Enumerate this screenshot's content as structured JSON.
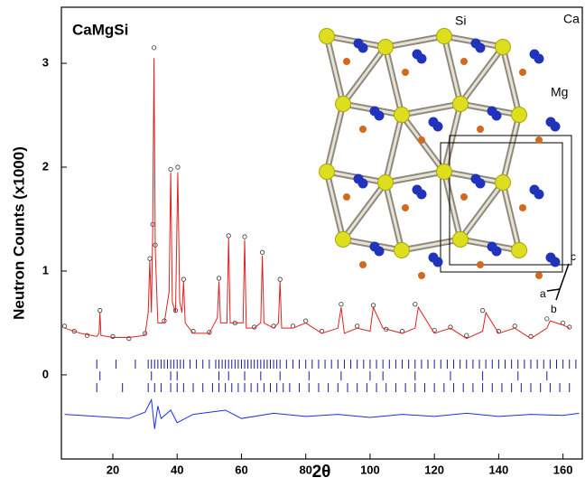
{
  "chart_data": {
    "type": "rietveld",
    "title": "CaMgSi",
    "ylabel": "Neutron Counts (x1000)",
    "xlabel": "2θ",
    "xlim": [
      4,
      166
    ],
    "ylim": [
      -0.81,
      3.54
    ],
    "xticks": [
      20,
      40,
      60,
      80,
      100,
      120,
      140,
      160
    ],
    "yticks": [
      0,
      1,
      2,
      3
    ],
    "observed": {
      "color": "#333333",
      "x": [
        5,
        8,
        12,
        16,
        20,
        25,
        30,
        31.5,
        32.4,
        32.8,
        33.2,
        36,
        38,
        39.5,
        40.2,
        42,
        45,
        50,
        53,
        56,
        58,
        61,
        64,
        66.5,
        70,
        72,
        76,
        80,
        85,
        91,
        96,
        101,
        105,
        110,
        114,
        120,
        125,
        130,
        135,
        140,
        145,
        150,
        155,
        160,
        162
      ],
      "y": [
        0.47,
        0.42,
        0.38,
        0.62,
        0.37,
        0.35,
        0.4,
        1.12,
        1.45,
        3.15,
        1.25,
        0.52,
        1.98,
        0.62,
        2.0,
        0.92,
        0.42,
        0.41,
        0.93,
        1.34,
        0.5,
        1.33,
        0.46,
        1.18,
        0.47,
        0.92,
        0.47,
        0.52,
        0.42,
        0.68,
        0.47,
        0.67,
        0.44,
        0.42,
        0.68,
        0.43,
        0.46,
        0.38,
        0.62,
        0.42,
        0.47,
        0.37,
        0.54,
        0.5,
        0.46
      ]
    },
    "calculated": {
      "color": "#e02020",
      "x": [
        5,
        10,
        15,
        15.7,
        16,
        16.3,
        20,
        25,
        30,
        31,
        31.5,
        32,
        32.4,
        32.8,
        33.2,
        34,
        36,
        37.5,
        38,
        38.5,
        39.5,
        40.2,
        40.8,
        41.5,
        42,
        42.5,
        45,
        50,
        52.5,
        53,
        53.5,
        55.5,
        56,
        56.5,
        60.5,
        61,
        61.5,
        64,
        66,
        66.5,
        67,
        70,
        71.5,
        72,
        72.5,
        76,
        80,
        85,
        90,
        91,
        92,
        96,
        100,
        101,
        104,
        110,
        114,
        115,
        120,
        125,
        130,
        135,
        136,
        140,
        145,
        150,
        155,
        156,
        160,
        162
      ],
      "y": [
        0.45,
        0.4,
        0.37,
        0.4,
        0.6,
        0.38,
        0.36,
        0.36,
        0.38,
        0.6,
        1.1,
        0.6,
        1.4,
        3.05,
        1.2,
        0.5,
        0.5,
        0.8,
        1.95,
        0.7,
        0.6,
        1.95,
        0.7,
        0.6,
        0.9,
        0.5,
        0.4,
        0.4,
        0.55,
        0.9,
        0.5,
        0.5,
        1.32,
        0.5,
        0.5,
        1.3,
        0.45,
        0.45,
        0.5,
        1.15,
        0.5,
        0.45,
        0.5,
        0.9,
        0.45,
        0.45,
        0.5,
        0.4,
        0.45,
        0.65,
        0.4,
        0.45,
        0.42,
        0.65,
        0.45,
        0.4,
        0.45,
        0.65,
        0.4,
        0.45,
        0.35,
        0.42,
        0.6,
        0.4,
        0.45,
        0.35,
        0.45,
        0.52,
        0.48,
        0.45
      ]
    },
    "difference": {
      "color": "#1f2fe0",
      "x": [
        5,
        15,
        25,
        30,
        31,
        32,
        33,
        34,
        35,
        38,
        40,
        45,
        55,
        60,
        70,
        80,
        90,
        100,
        110,
        120,
        130,
        140,
        150,
        160,
        165
      ],
      "y": [
        -0.38,
        -0.4,
        -0.42,
        -0.36,
        -0.3,
        -0.24,
        -0.52,
        -0.3,
        -0.42,
        -0.34,
        -0.46,
        -0.38,
        -0.34,
        -0.42,
        -0.37,
        -0.4,
        -0.38,
        -0.41,
        -0.38,
        -0.4,
        -0.37,
        -0.4,
        -0.38,
        -0.39,
        -0.37
      ]
    },
    "reflections": {
      "color": "#1a1aa0",
      "rows": [
        [
          15,
          21,
          27,
          31,
          32,
          33,
          34,
          35,
          36,
          37,
          38,
          39,
          40,
          41,
          42,
          44,
          46,
          48,
          50,
          52,
          53,
          54,
          55,
          56,
          57,
          58,
          59,
          60,
          61,
          62,
          63,
          64,
          65,
          66,
          67,
          68,
          69,
          70,
          71,
          72,
          74,
          76,
          78,
          80,
          82,
          84,
          86,
          88,
          90,
          92,
          94,
          96,
          98,
          100,
          102,
          104,
          106,
          108,
          110,
          112,
          114,
          116,
          118,
          120,
          122,
          124,
          126,
          128,
          130,
          132,
          134,
          136,
          138,
          140,
          142,
          144,
          146,
          148,
          150,
          152,
          154,
          156,
          158,
          160,
          162,
          164
        ],
        [
          16,
          32,
          38,
          40,
          53,
          56,
          61,
          66,
          72,
          81,
          91,
          100,
          104,
          114,
          125,
          135,
          146,
          155
        ],
        [
          15,
          23,
          31,
          33,
          35,
          38,
          40,
          42,
          45,
          48,
          51,
          53,
          55,
          57,
          59,
          61,
          63,
          65,
          67,
          69,
          71,
          73,
          75,
          78,
          81,
          84,
          87,
          90,
          93,
          96,
          99,
          102,
          105,
          108,
          111,
          114,
          117,
          120,
          123,
          126,
          129,
          132,
          135,
          138,
          141,
          144,
          147,
          150,
          153,
          156,
          159,
          162
        ]
      ]
    },
    "inset_labels": {
      "si": "Si",
      "ca": "Ca",
      "mg": "Mg",
      "a": "a",
      "b": "b",
      "c": "c"
    }
  }
}
